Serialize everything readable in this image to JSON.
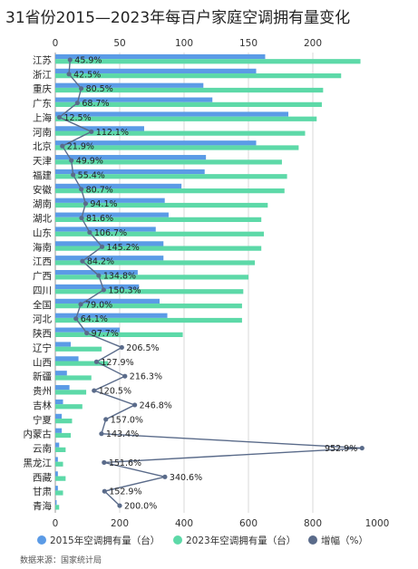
{
  "chart_data": {
    "type": "bar",
    "title": "31省份2015—2023年每百户家庭空调拥有量变化",
    "source": "数据来源：国家统计局",
    "categories": [
      "江苏",
      "浙江",
      "重庆",
      "广东",
      "上海",
      "河南",
      "北京",
      "天津",
      "福建",
      "安徽",
      "湖南",
      "湖北",
      "山东",
      "海南",
      "江西",
      "广西",
      "四川",
      "全国",
      "河北",
      "陕西",
      "辽宁",
      "山西",
      "新疆",
      "贵州",
      "吉林",
      "宁夏",
      "内蒙古",
      "云南",
      "黑龙江",
      "西藏",
      "甘肃",
      "青海"
    ],
    "series": [
      {
        "name": "2015年空调拥有量（台）",
        "color": "#5b9be6",
        "axis": "top",
        "values": [
          163,
          156,
          115,
          122,
          181,
          69,
          156,
          117,
          116,
          98,
          85,
          88,
          78,
          84,
          84,
          64,
          65,
          81,
          87,
          50,
          12,
          18,
          9,
          11,
          6,
          5,
          5,
          3,
          2,
          2,
          2,
          1
        ]
      },
      {
        "name": "2023年空调拥有量（台）",
        "color": "#5dd9a8",
        "axis": "top",
        "values": [
          237,
          222,
          208,
          207,
          203,
          194,
          189,
          176,
          180,
          178,
          165,
          160,
          162,
          160,
          155,
          150,
          146,
          145,
          145,
          99,
          36,
          41,
          28,
          24,
          21,
          13,
          12,
          8,
          6,
          8,
          6,
          3
        ]
      },
      {
        "name": "增幅（%）",
        "color": "#5a6b8a",
        "axis": "bottom",
        "type": "line",
        "values": [
          45.9,
          42.5,
          80.5,
          68.7,
          12.5,
          112.1,
          21.9,
          49.9,
          55.4,
          80.7,
          94.1,
          81.6,
          106.7,
          145.2,
          84.2,
          134.8,
          150.3,
          79.0,
          64.1,
          97.7,
          206.5,
          127.9,
          216.3,
          120.5,
          246.8,
          157.0,
          143.4,
          952.9,
          151.6,
          340.6,
          152.9,
          200.0
        ]
      }
    ],
    "labels": [
      "45.9%",
      "42.5%",
      "80.5%",
      "68.7%",
      "12.5%",
      "112.1%",
      "21.9%",
      "49.9%",
      "55.4%",
      "80.7%",
      "94.1%",
      "81.6%",
      "106.7%",
      "145.2%",
      "84.2%",
      "134.8%",
      "150.3%",
      "79.0%",
      "64.1%",
      "97.7%",
      "206.5%",
      "127.9%",
      "216.3%",
      "120.5%",
      "246.8%",
      "157.0%",
      "143.4%",
      "952.9%",
      "151.6%",
      "340.6%",
      "152.9%",
      "200.0%"
    ],
    "top_axis": {
      "range": [
        0,
        250
      ],
      "ticks": [
        "0",
        "50",
        "100",
        "150",
        "200"
      ]
    },
    "bottom_axis": {
      "range": [
        0,
        1000
      ],
      "ticks": [
        "0",
        "200",
        "400",
        "600",
        "800",
        "1000"
      ]
    },
    "legend_position": "bottom",
    "grid": true
  }
}
